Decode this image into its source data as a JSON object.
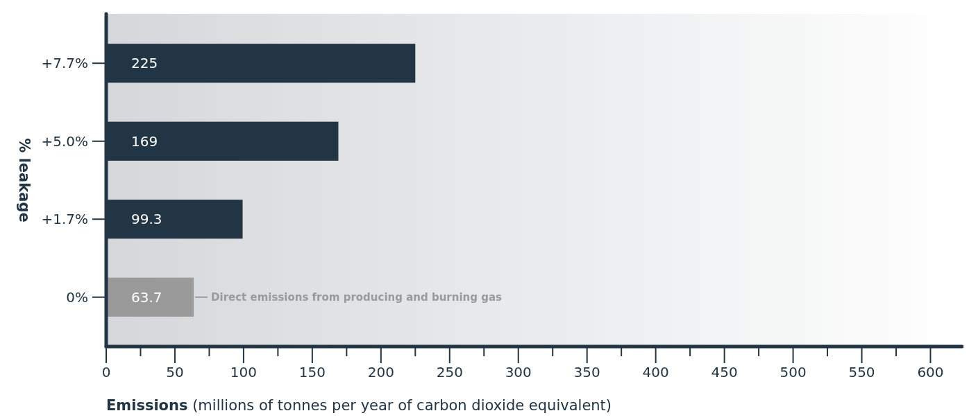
{
  "chart_data": {
    "type": "bar",
    "orientation": "horizontal",
    "xlabel": "Emissions (millions of tonnes per year of carbon dioxide equivalent)",
    "ylabel": "% leakage",
    "categories": [
      "+7.7%",
      "+5.0%",
      "+1.7%",
      "0%"
    ],
    "values": [
      225,
      169,
      99.3,
      63.7
    ],
    "colors": [
      "#223544",
      "#223544",
      "#223544",
      "#9a9a9a"
    ],
    "data_labels": true,
    "xlim": [
      0,
      623
    ],
    "xticks": [
      0,
      {
        "value": 25,
        "label": null
      },
      50,
      {
        "value": 75,
        "label": null
      },
      100,
      {
        "value": 125,
        "label": null
      },
      150,
      {
        "value": 175,
        "label": null
      },
      200,
      {
        "value": 225,
        "label": null
      },
      250,
      {
        "value": 275,
        "label": null
      },
      300,
      {
        "value": 325,
        "label": null
      },
      350,
      {
        "value": 375,
        "label": null
      },
      400,
      {
        "value": 425,
        "label": null
      },
      450,
      {
        "value": 475,
        "label": null
      },
      500,
      {
        "value": 525,
        "label": null
      },
      550,
      {
        "value": 575,
        "label": null
      },
      600
    ],
    "annotations": [
      {
        "text": "Direct emissions from producing and burning gas",
        "x": 63.7,
        "y": "0%"
      }
    ],
    "grid": false
  }
}
